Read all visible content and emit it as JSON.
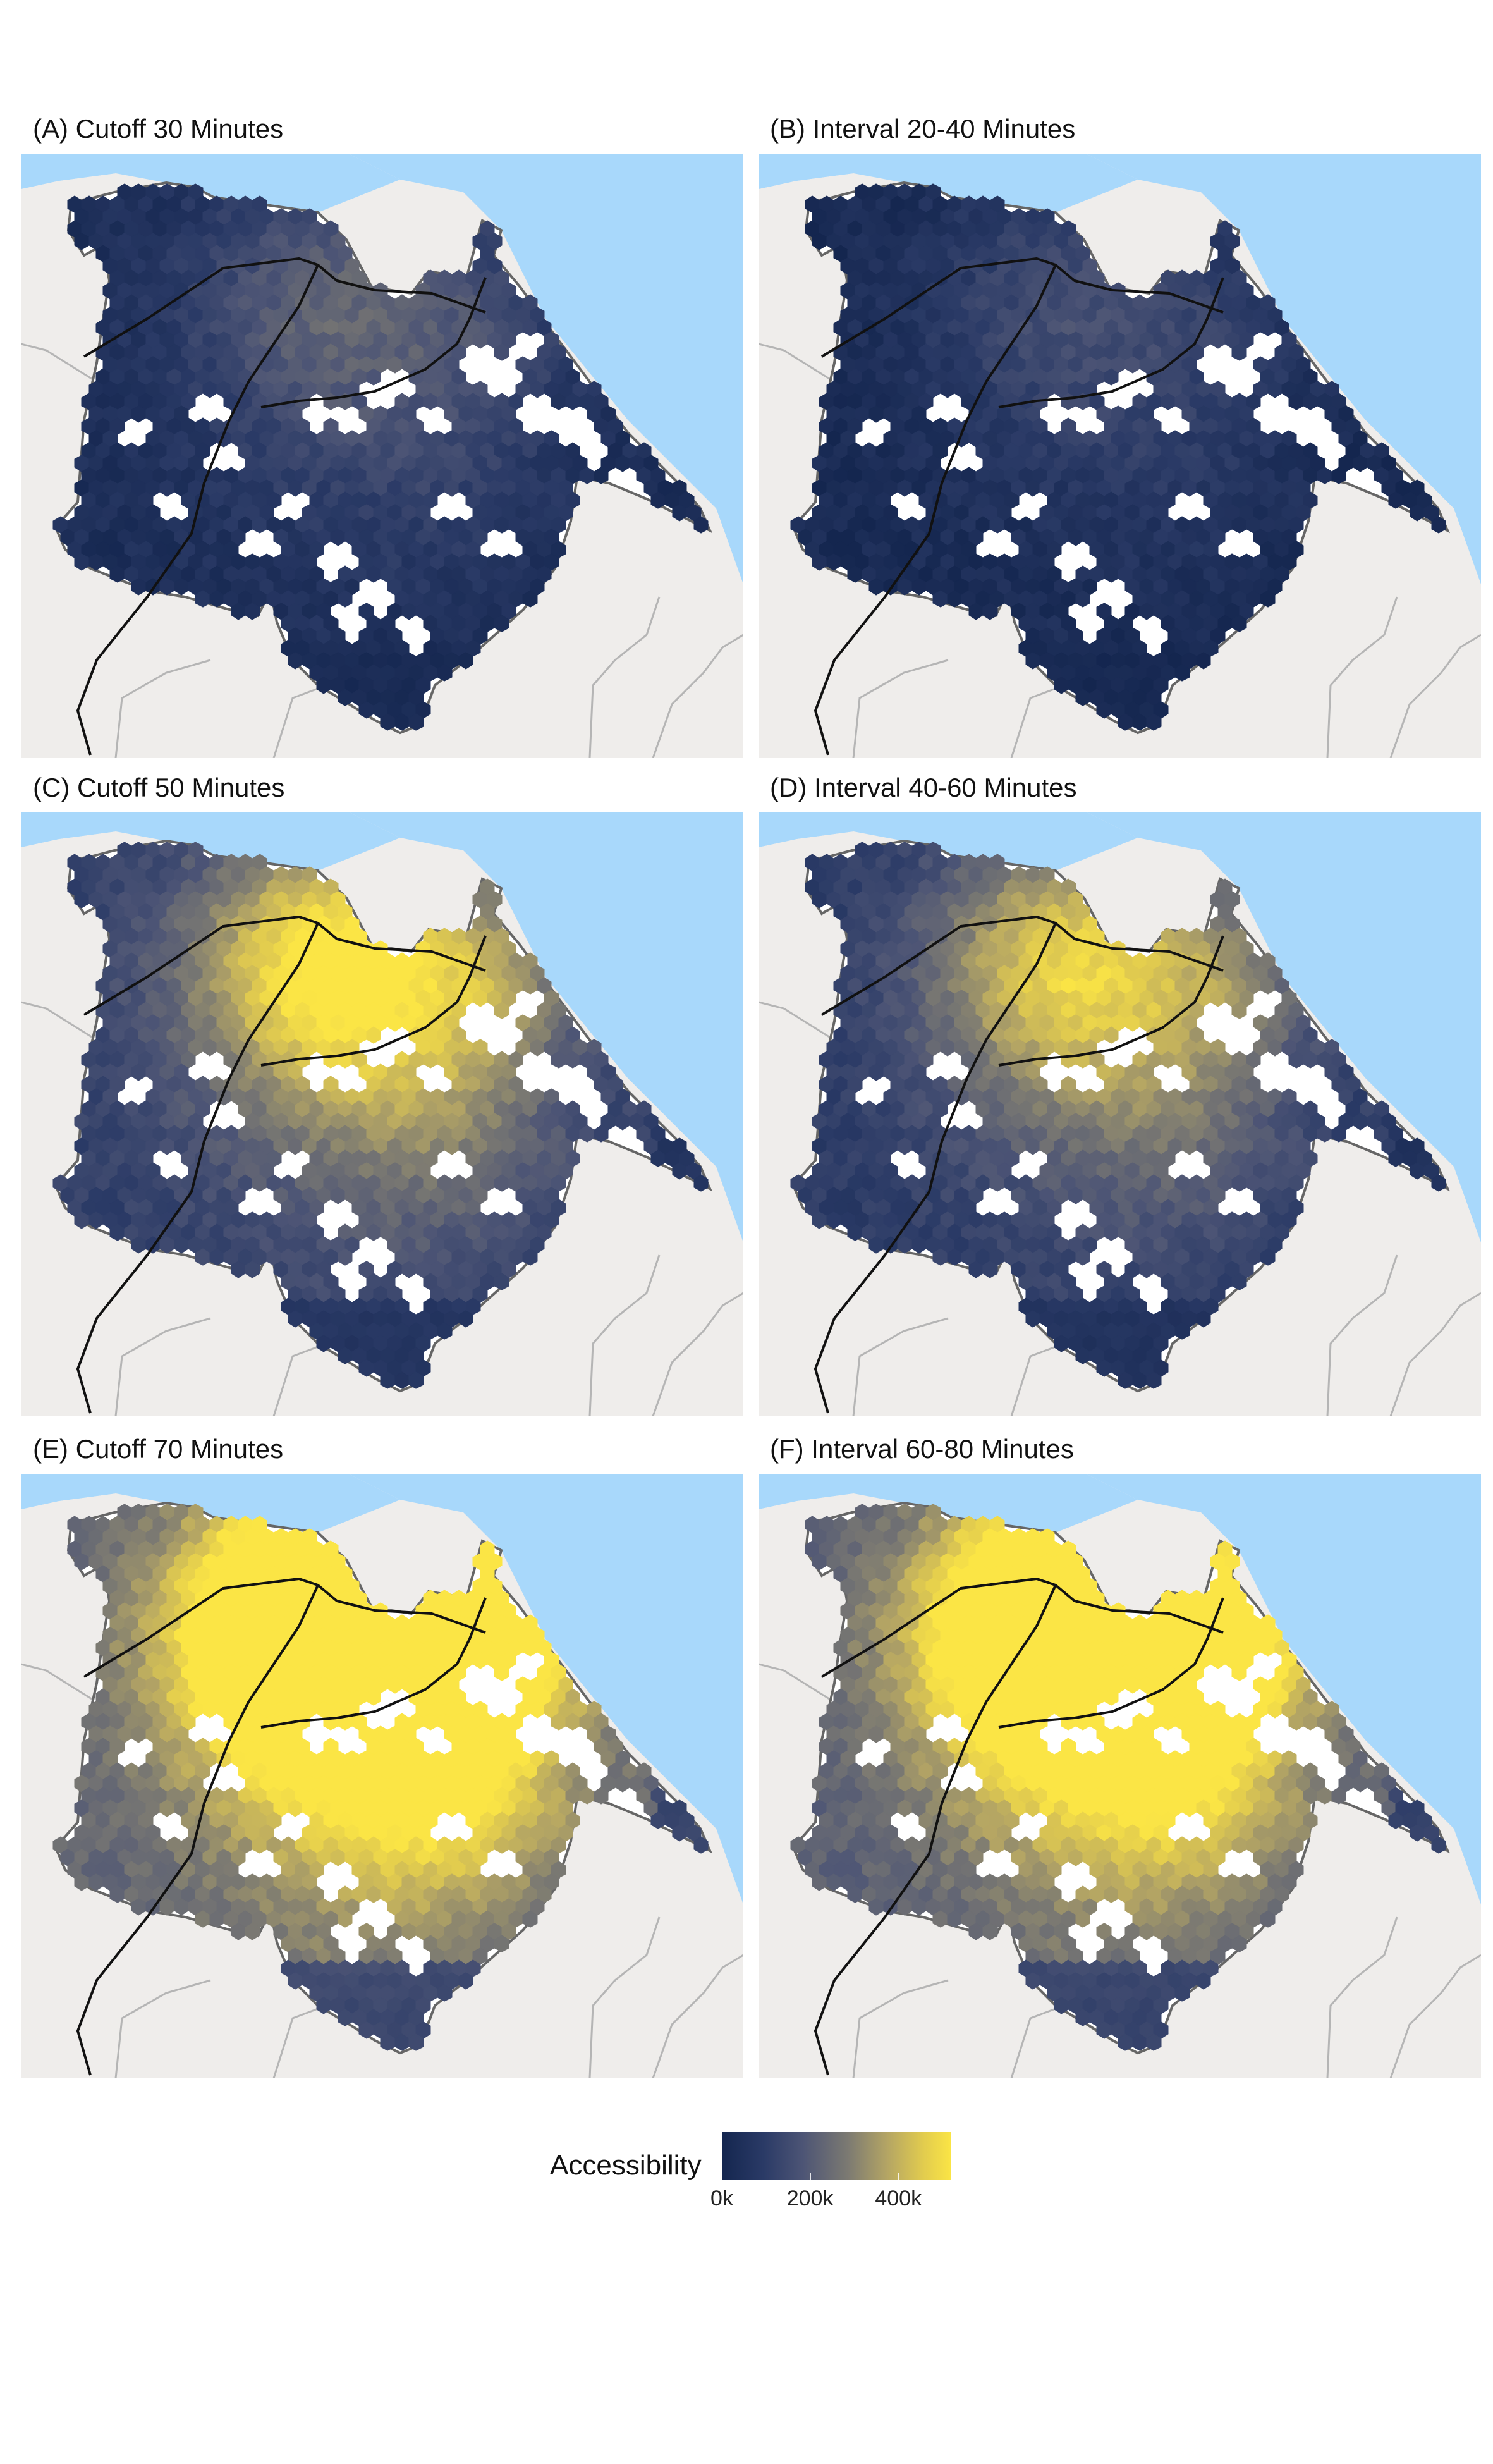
{
  "panels": [
    {
      "title": "(A) Cutoff 30 Minutes",
      "level": 0.18
    },
    {
      "title": "(B) Interval 20-40 Minutes",
      "level": 0.13
    },
    {
      "title": "(C) Cutoff 50 Minutes",
      "level": 0.42
    },
    {
      "title": "(D) Interval 40-60 Minutes",
      "level": 0.36
    },
    {
      "title": "(E) Cutoff 70 Minutes",
      "level": 0.78
    },
    {
      "title": "(F) Interval 60-80 Minutes",
      "level": 0.72
    }
  ],
  "colors": {
    "sea": "#a8d8fb",
    "land": "#efedeb",
    "boundary": "#666666",
    "low": "#14264f",
    "high": "#fbe545",
    "rail": "#111111"
  },
  "legend": {
    "title": "Accessibility",
    "ticks": [
      "0k",
      "200k",
      "400k"
    ],
    "tick_values": [
      0,
      200000,
      400000
    ],
    "max": 520000
  }
}
